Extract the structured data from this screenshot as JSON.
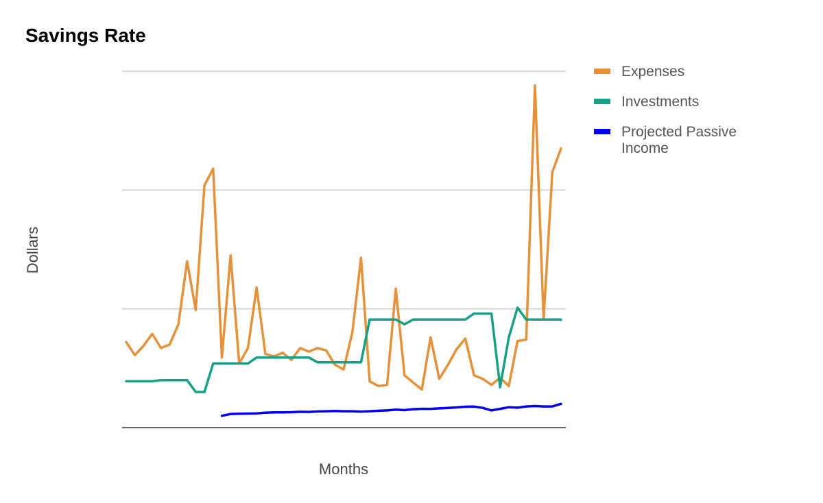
{
  "chart_data": {
    "type": "line",
    "title": "Savings Rate",
    "xlabel": "Months",
    "ylabel": "Dollars",
    "ylim": [
      0,
      3000
    ],
    "grid_values": [
      1000,
      2000,
      3000
    ],
    "show_tick_labels": false,
    "grid": true,
    "legend_position": "right",
    "series": [
      {
        "name": "Expenses",
        "color": "#e69138",
        "start_index": 0,
        "values": [
          720,
          610,
          690,
          790,
          670,
          700,
          870,
          1400,
          990,
          2040,
          2180,
          590,
          1450,
          540,
          670,
          1180,
          620,
          600,
          630,
          570,
          670,
          640,
          670,
          650,
          530,
          490,
          800,
          1430,
          390,
          350,
          360,
          1170,
          440,
          380,
          320,
          760,
          410,
          530,
          660,
          750,
          440,
          410,
          360,
          420,
          350,
          730,
          740,
          2880,
          910,
          2150,
          2350
        ]
      },
      {
        "name": "Investments",
        "color": "#16a085",
        "start_index": 0,
        "values": [
          390,
          390,
          390,
          390,
          400,
          400,
          400,
          400,
          300,
          300,
          540,
          540,
          540,
          540,
          540,
          590,
          590,
          590,
          590,
          590,
          590,
          590,
          550,
          550,
          550,
          550,
          550,
          550,
          910,
          910,
          910,
          910,
          870,
          910,
          910,
          910,
          910,
          910,
          910,
          910,
          960,
          960,
          960,
          340,
          760,
          1010,
          910,
          910,
          910,
          910,
          910
        ]
      },
      {
        "name": "Projected Passive Income",
        "color": "#0000ee",
        "start_index": 11,
        "values": [
          100,
          115,
          117,
          118,
          120,
          126,
          128,
          128,
          130,
          133,
          132,
          136,
          138,
          140,
          138,
          138,
          135,
          138,
          142,
          145,
          152,
          147,
          155,
          158,
          158,
          162,
          166,
          170,
          176,
          177,
          166,
          145,
          158,
          172,
          168,
          178,
          182,
          178,
          178,
          200
        ]
      }
    ]
  }
}
